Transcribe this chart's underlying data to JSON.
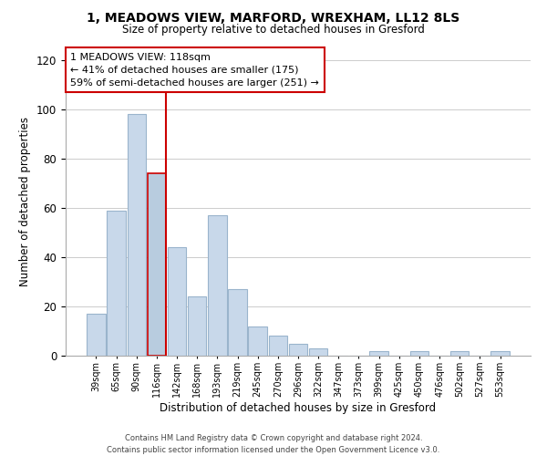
{
  "title": "1, MEADOWS VIEW, MARFORD, WREXHAM, LL12 8LS",
  "subtitle": "Size of property relative to detached houses in Gresford",
  "xlabel": "Distribution of detached houses by size in Gresford",
  "ylabel": "Number of detached properties",
  "bar_labels": [
    "39sqm",
    "65sqm",
    "90sqm",
    "116sqm",
    "142sqm",
    "168sqm",
    "193sqm",
    "219sqm",
    "245sqm",
    "270sqm",
    "296sqm",
    "322sqm",
    "347sqm",
    "373sqm",
    "399sqm",
    "425sqm",
    "450sqm",
    "476sqm",
    "502sqm",
    "527sqm",
    "553sqm"
  ],
  "bar_values": [
    17,
    59,
    98,
    74,
    44,
    24,
    57,
    27,
    12,
    8,
    5,
    3,
    0,
    0,
    2,
    0,
    2,
    0,
    2,
    0,
    2
  ],
  "bar_color": "#c8d8ea",
  "bar_edge_color": "#9ab4cc",
  "highlight_index": 3,
  "highlight_line_color": "#cc0000",
  "annotation_line1": "1 MEADOWS VIEW: 118sqm",
  "annotation_line2": "← 41% of detached houses are smaller (175)",
  "annotation_line3": "59% of semi-detached houses are larger (251) →",
  "annotation_box_color": "#ffffff",
  "annotation_box_edge_color": "#cc0000",
  "ylim": [
    0,
    125
  ],
  "yticks": [
    0,
    20,
    40,
    60,
    80,
    100,
    120
  ],
  "footer_line1": "Contains HM Land Registry data © Crown copyright and database right 2024.",
  "footer_line2": "Contains public sector information licensed under the Open Government Licence v3.0.",
  "background_color": "#ffffff",
  "grid_color": "#cccccc"
}
